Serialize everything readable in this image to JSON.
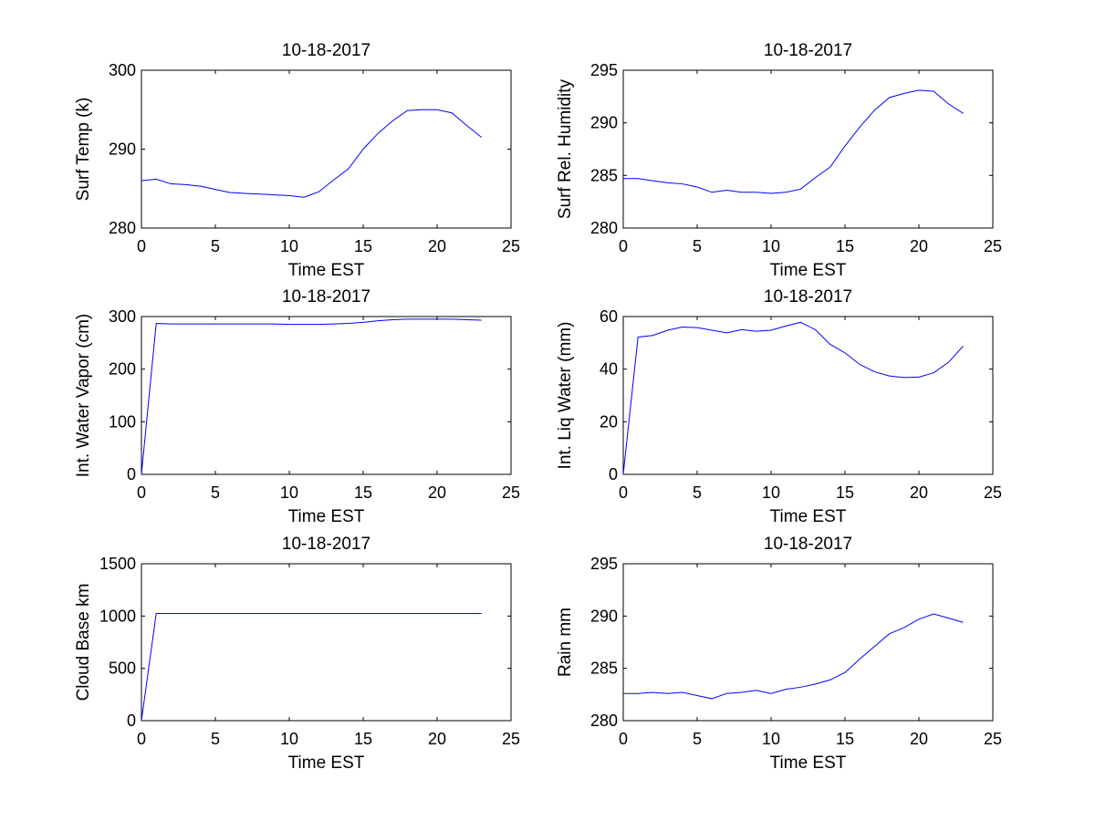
{
  "figure": {
    "background": "#ffffff",
    "line_color": "#0000ff"
  },
  "chart_data": [
    {
      "type": "line",
      "title": "10-18-2017",
      "xlabel": "Time EST",
      "ylabel": "Surf Temp (k)",
      "xlim": [
        0,
        25
      ],
      "ylim": [
        280,
        300
      ],
      "xticks": [
        0,
        5,
        10,
        15,
        20,
        25
      ],
      "yticks": [
        280,
        290,
        300
      ],
      "grid": false,
      "series": [
        {
          "x": [
            0,
            1,
            2,
            3,
            4,
            5,
            6,
            7,
            8,
            9,
            10,
            11,
            12,
            13,
            14,
            15,
            16,
            17,
            18,
            19,
            20,
            21,
            22,
            23
          ],
          "y": [
            286.0,
            286.2,
            285.6,
            285.5,
            285.3,
            284.9,
            284.5,
            284.4,
            284.3,
            284.2,
            284.1,
            283.9,
            284.6,
            286.1,
            287.5,
            290.0,
            292.0,
            293.6,
            294.9,
            295.0,
            295.0,
            294.6,
            293.0,
            291.5
          ]
        }
      ]
    },
    {
      "type": "line",
      "title": "10-18-2017",
      "xlabel": "Time EST",
      "ylabel": "Surf Rel. Humidity",
      "xlim": [
        0,
        25
      ],
      "ylim": [
        280,
        295
      ],
      "xticks": [
        0,
        5,
        10,
        15,
        20,
        25
      ],
      "yticks": [
        280,
        285,
        290,
        295
      ],
      "grid": false,
      "series": [
        {
          "x": [
            0,
            1,
            2,
            3,
            4,
            5,
            6,
            7,
            8,
            9,
            10,
            11,
            12,
            13,
            14,
            15,
            16,
            17,
            18,
            19,
            20,
            21,
            22,
            23
          ],
          "y": [
            284.7,
            284.7,
            284.5,
            284.3,
            284.2,
            283.9,
            283.4,
            283.6,
            283.4,
            283.4,
            283.3,
            283.4,
            283.7,
            284.8,
            285.8,
            287.8,
            289.6,
            291.2,
            292.4,
            292.8,
            293.1,
            293.0,
            291.8,
            290.9
          ]
        }
      ]
    },
    {
      "type": "line",
      "title": "10-18-2017",
      "xlabel": "Time EST",
      "ylabel": "Int. Water Vapor (cm)",
      "xlim": [
        0,
        25
      ],
      "ylim": [
        0,
        300
      ],
      "xticks": [
        0,
        5,
        10,
        15,
        20,
        25
      ],
      "yticks": [
        0,
        100,
        200,
        300
      ],
      "grid": false,
      "series": [
        {
          "x": [
            0,
            1,
            2,
            3,
            4,
            5,
            6,
            7,
            8,
            9,
            10,
            11,
            12,
            13,
            14,
            15,
            16,
            17,
            18,
            19,
            20,
            21,
            22,
            23
          ],
          "y": [
            0,
            287,
            286,
            286,
            286,
            286,
            286,
            286,
            286,
            286,
            285,
            285,
            285,
            286,
            287,
            289,
            292,
            294,
            295,
            295,
            295,
            295,
            294,
            293
          ]
        }
      ]
    },
    {
      "type": "line",
      "title": "10-18-2017",
      "xlabel": "Time EST",
      "ylabel": "Int. Liq Water (mm)",
      "xlim": [
        0,
        25
      ],
      "ylim": [
        0,
        60
      ],
      "xticks": [
        0,
        5,
        10,
        15,
        20,
        25
      ],
      "yticks": [
        0,
        20,
        40,
        60
      ],
      "grid": false,
      "series": [
        {
          "x": [
            0,
            1,
            2,
            3,
            4,
            5,
            6,
            7,
            8,
            9,
            10,
            11,
            12,
            13,
            14,
            15,
            16,
            17,
            18,
            19,
            20,
            21,
            22,
            23
          ],
          "y": [
            0,
            52.2,
            52.8,
            54.8,
            56.0,
            55.8,
            54.8,
            53.8,
            55.0,
            54.4,
            54.8,
            56.4,
            57.8,
            55.0,
            49.4,
            46.2,
            41.8,
            39.0,
            37.4,
            36.8,
            37.0,
            38.6,
            42.6,
            48.8
          ]
        }
      ]
    },
    {
      "type": "line",
      "title": "10-18-2017",
      "xlabel": "Time EST",
      "ylabel": "Cloud Base km",
      "xlim": [
        0,
        25
      ],
      "ylim": [
        0,
        1500
      ],
      "xticks": [
        0,
        5,
        10,
        15,
        20,
        25
      ],
      "yticks": [
        0,
        500,
        1000,
        1500
      ],
      "grid": false,
      "series": [
        {
          "x": [
            0,
            1,
            2,
            3,
            4,
            5,
            6,
            7,
            8,
            9,
            10,
            11,
            12,
            13,
            14,
            15,
            16,
            17,
            18,
            19,
            20,
            21,
            22,
            23
          ],
          "y": [
            0,
            1025,
            1025,
            1025,
            1025,
            1025,
            1025,
            1025,
            1025,
            1025,
            1025,
            1025,
            1025,
            1025,
            1025,
            1025,
            1025,
            1025,
            1025,
            1025,
            1025,
            1025,
            1025,
            1025
          ]
        }
      ]
    },
    {
      "type": "line",
      "title": "10-18-2017",
      "xlabel": "Time EST",
      "ylabel": "Rain mm",
      "xlim": [
        0,
        25
      ],
      "ylim": [
        280,
        295
      ],
      "xticks": [
        0,
        5,
        10,
        15,
        20,
        25
      ],
      "yticks": [
        280,
        285,
        290,
        295
      ],
      "grid": false,
      "series": [
        {
          "x": [
            0,
            1,
            2,
            3,
            4,
            5,
            6,
            7,
            8,
            9,
            10,
            11,
            12,
            13,
            14,
            15,
            16,
            17,
            18,
            19,
            20,
            21,
            22,
            23
          ],
          "y": [
            282.6,
            282.6,
            282.7,
            282.6,
            282.7,
            282.4,
            282.1,
            282.6,
            282.7,
            282.9,
            282.6,
            283.0,
            283.2,
            283.5,
            283.9,
            284.6,
            285.9,
            287.1,
            288.3,
            288.9,
            289.7,
            290.2,
            289.8,
            289.4
          ]
        }
      ]
    }
  ]
}
